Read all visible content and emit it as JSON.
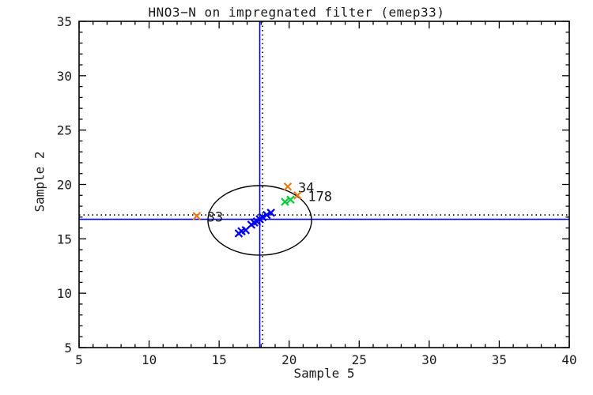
{
  "page": {
    "background": "#ffffff"
  },
  "chart_data": {
    "type": "scatter",
    "title": "HNO3−N on impregnated filter (emep33)",
    "xlabel": "Sample 5",
    "ylabel": "Sample 2",
    "xlim": [
      5,
      40
    ],
    "ylim": [
      5,
      35
    ],
    "x_major_ticks": [
      5,
      10,
      15,
      20,
      25,
      30,
      35,
      40
    ],
    "y_major_ticks": [
      5,
      10,
      15,
      20,
      25,
      30,
      35
    ],
    "minor_tick_step": 1,
    "grid": false,
    "frame_color": "#000000",
    "text_color": "#1a1a1a",
    "marker": "x",
    "series": [
      {
        "name": "blue-cluster",
        "color": "#0000ee",
        "marker": "x",
        "points": [
          [
            16.4,
            15.5
          ],
          [
            16.6,
            15.7
          ],
          [
            16.9,
            15.8
          ],
          [
            17.3,
            16.3
          ],
          [
            17.5,
            16.5
          ],
          [
            17.7,
            16.6
          ],
          [
            17.9,
            16.8
          ],
          [
            18.1,
            17.0
          ],
          [
            18.4,
            17.2
          ],
          [
            18.7,
            17.4
          ]
        ]
      },
      {
        "name": "green-pair",
        "color": "#00cc33",
        "marker": "x",
        "points": [
          [
            19.7,
            18.4
          ],
          [
            20.1,
            18.6
          ]
        ]
      },
      {
        "name": "labeled-outliers",
        "color": "#e87b1a",
        "marker": "x",
        "points": [
          [
            13.4,
            17.1
          ],
          [
            19.9,
            19.8
          ],
          [
            20.6,
            19.0
          ]
        ],
        "labels": [
          "33",
          "34",
          "178"
        ]
      }
    ],
    "reference_lines": [
      {
        "style": "solid",
        "color": "#0000dd",
        "x": 17.9,
        "y": 16.8
      },
      {
        "style": "dotted",
        "color": "#000000",
        "x": 18.1,
        "y": 17.2
      }
    ],
    "ellipse": {
      "cx": 17.9,
      "cy": 16.7,
      "rx": 3.7,
      "ry": 3.2,
      "color": "#000000"
    }
  }
}
